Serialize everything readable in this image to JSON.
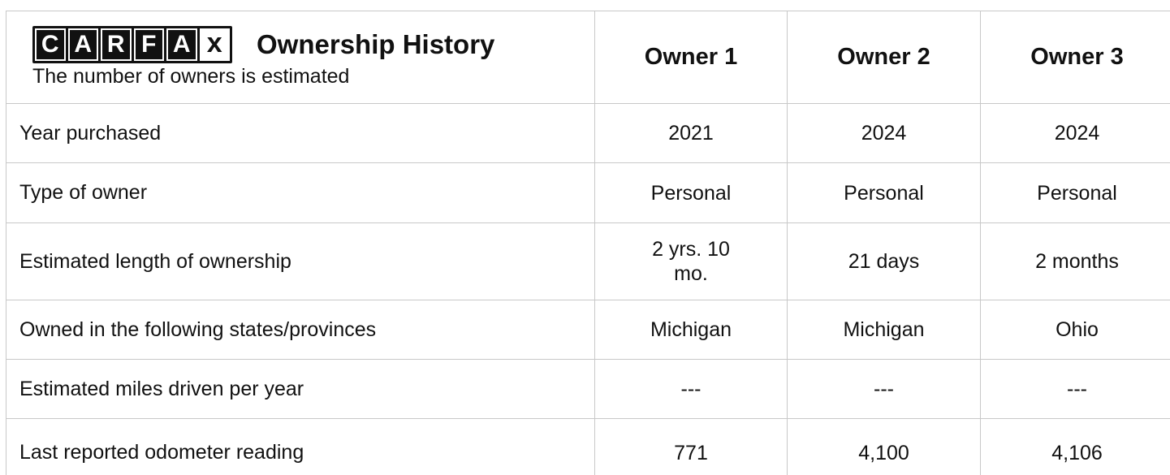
{
  "header": {
    "logo": [
      "C",
      "A",
      "R",
      "F",
      "A",
      "x"
    ],
    "title": "Ownership History",
    "subtitle": "The number of owners is estimated",
    "owners": [
      "Owner 1",
      "Owner 2",
      "Owner 3"
    ]
  },
  "table": {
    "rows": [
      [
        "Year purchased",
        "2021",
        "2024",
        "2024"
      ],
      [
        "Type of owner",
        "Personal",
        "Personal",
        "Personal"
      ],
      [
        "Estimated length of ownership",
        "2 yrs. 10 mo.",
        "21 days",
        "2 months"
      ],
      [
        "Owned in the following states/provinces",
        "Michigan",
        "Michigan",
        "Ohio"
      ],
      [
        "Estimated miles driven per year",
        "---",
        "---",
        "---"
      ],
      [
        "Last reported odometer reading",
        "771",
        "4,100",
        "4,106"
      ]
    ]
  }
}
